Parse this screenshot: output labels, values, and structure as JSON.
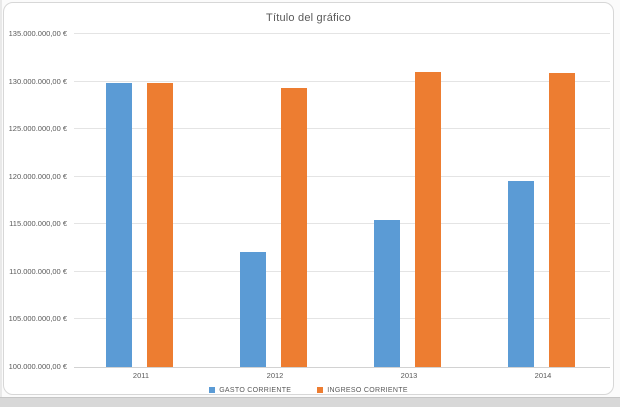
{
  "chart_data": {
    "type": "bar",
    "title": "Título del gráfico",
    "categories": [
      "2011",
      "2012",
      "2013",
      "2014"
    ],
    "series": [
      {
        "name": "GASTO CORRIENTE",
        "color": "#5B9BD5",
        "values": [
          129900000,
          112100000,
          115400000,
          119600000
        ]
      },
      {
        "name": "INGRESO CORRIENTE",
        "color": "#ED7D31",
        "values": [
          129800000,
          129300000,
          131000000,
          130900000
        ]
      }
    ],
    "ylim": [
      100000000,
      135000000
    ],
    "ytick_step": 5000000,
    "ytick_labels": [
      "100.000.000,00 €",
      "105.000.000,00 €",
      "110.000.000,00 €",
      "115.000.000,00 €",
      "120.000.000,00 €",
      "125.000.000,00 €",
      "130.000.000,00 €",
      "135.000.000,00 €"
    ],
    "xlabel": "",
    "ylabel": "",
    "grid": true,
    "legend_position": "bottom"
  },
  "colors": {
    "title_text": "#595959",
    "axis_text": "#595959",
    "gridline": "#e4e4e4",
    "chart_border": "#d7d7d7",
    "series_blue": "#5B9BD5",
    "series_orange": "#ED7D31"
  }
}
